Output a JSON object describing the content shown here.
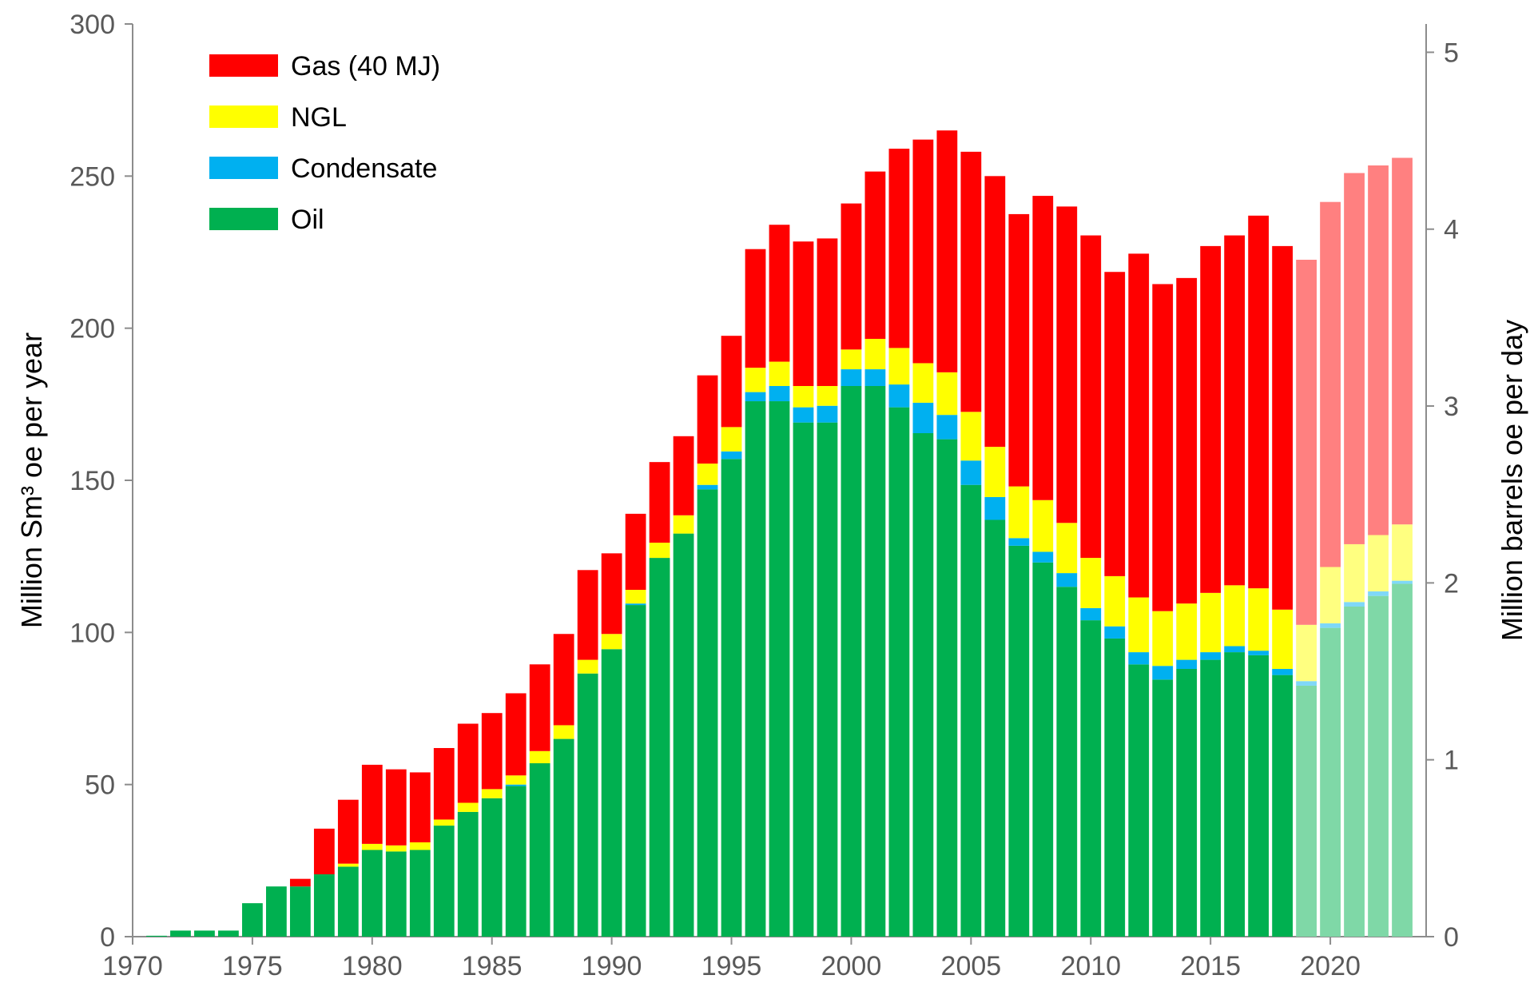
{
  "chart_data": {
    "type": "bar",
    "stacked": true,
    "title": "",
    "xlabel": "",
    "ylabel": "Million Sm³ oe  per year",
    "y2label": "Million barrels oe per day",
    "xlim": [
      1970,
      2024
    ],
    "ylim": [
      0,
      300
    ],
    "y2lim": [
      0,
      5.16
    ],
    "xticks": [
      "1970",
      "1975",
      "1980",
      "1985",
      "1990",
      "1995",
      "2000",
      "2005",
      "2010",
      "2015",
      "2020"
    ],
    "yticks": [
      "0",
      "50",
      "100",
      "150",
      "200",
      "250",
      "300"
    ],
    "y2ticks": [
      "0",
      "1",
      "2",
      "3",
      "4",
      "5"
    ],
    "legend_position": "top-left",
    "forecast_from": 2019,
    "x": [
      1971,
      1972,
      1973,
      1974,
      1975,
      1976,
      1977,
      1978,
      1979,
      1980,
      1981,
      1982,
      1983,
      1984,
      1985,
      1986,
      1987,
      1988,
      1989,
      1990,
      1991,
      1992,
      1993,
      1994,
      1995,
      1996,
      1997,
      1998,
      1999,
      2000,
      2001,
      2002,
      2003,
      2004,
      2005,
      2006,
      2007,
      2008,
      2009,
      2010,
      2011,
      2012,
      2013,
      2014,
      2015,
      2016,
      2017,
      2018,
      2019,
      2020,
      2021,
      2022,
      2023
    ],
    "series": [
      {
        "name": "Oil",
        "color": "#00b050",
        "forecast_color": "#7fd8a7",
        "values": [
          0.3,
          2,
          2,
          2,
          11,
          16.5,
          16.5,
          20.5,
          23,
          28.5,
          28,
          28.5,
          36.5,
          41,
          45.5,
          49.5,
          57,
          65,
          86.5,
          94.5,
          109,
          124.5,
          132.5,
          147,
          157,
          176,
          176,
          169,
          169,
          181,
          181,
          174,
          165.5,
          163.5,
          148.5,
          137,
          128.5,
          123,
          115,
          104,
          98,
          89.5,
          84.5,
          88,
          91,
          93.5,
          92.5,
          86,
          82.5,
          101.5,
          108.5,
          112,
          116
        ]
      },
      {
        "name": "Condensate",
        "color": "#00b0f0",
        "forecast_color": "#7fd8f8",
        "values": [
          0,
          0,
          0,
          0,
          0,
          0,
          0,
          0,
          0,
          0,
          0,
          0,
          0,
          0,
          0,
          0.5,
          0,
          0,
          0,
          0,
          0.5,
          0,
          0,
          1.5,
          2.5,
          3,
          5,
          5,
          5.5,
          5.5,
          5.5,
          7.5,
          10,
          8,
          8,
          7.5,
          2.5,
          3.5,
          4.5,
          4,
          4,
          4,
          4.5,
          3,
          2.5,
          2,
          1.5,
          2,
          1.5,
          1.5,
          1.5,
          1.5,
          1
        ]
      },
      {
        "name": "NGL",
        "color": "#ffff00",
        "forecast_color": "#ffff80",
        "values": [
          0,
          0,
          0,
          0,
          0,
          0,
          0,
          0,
          1,
          2,
          2,
          2.5,
          2,
          3,
          3,
          3,
          4,
          4.5,
          4.5,
          5,
          4.5,
          5,
          6,
          7,
          8,
          8,
          8,
          7,
          6.5,
          6.5,
          10,
          12,
          13,
          14,
          16,
          16.5,
          17,
          17,
          16.5,
          16.5,
          16.5,
          18,
          18,
          18.5,
          19.5,
          20,
          20.5,
          19.5,
          18.5,
          18.5,
          19,
          18.5,
          18.5
        ]
      },
      {
        "name": "Gas (40 MJ)",
        "color": "#ff0000",
        "forecast_color": "#ff8080",
        "values": [
          0,
          0,
          0,
          0,
          0,
          0,
          2.5,
          15,
          21,
          26,
          25,
          23,
          23.5,
          26,
          25,
          27,
          28.5,
          30,
          29.5,
          26.5,
          25,
          26.5,
          26,
          29,
          30,
          39,
          45,
          47.5,
          48.5,
          48,
          55,
          65.5,
          73.5,
          79.5,
          85.5,
          89,
          89.5,
          100,
          104,
          106,
          100,
          113,
          107.5,
          107,
          114,
          115,
          122.5,
          119.5,
          120,
          120,
          122,
          121.5,
          120.5
        ]
      }
    ]
  }
}
